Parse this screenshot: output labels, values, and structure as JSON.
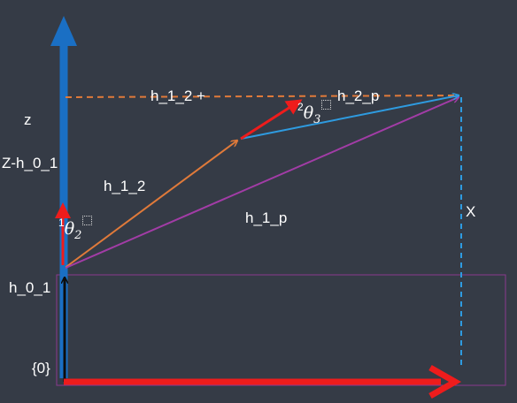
{
  "labels": {
    "z": "z",
    "z_minus_h01": "Z-h_0_1",
    "h_1_2": "h_1_2",
    "h_1_p": "h_1_p",
    "h_1_2_plus": "h_1_2 +",
    "h_2_p": "h_2_p",
    "x": "X",
    "h_0_1": "h_0_1",
    "frame_0": "{0}"
  },
  "angles": {
    "theta2": {
      "prefix": "1",
      "symbol": "θ",
      "subscript": "2"
    },
    "theta3": {
      "prefix": "2",
      "symbol": "θ",
      "subscript": "3"
    }
  },
  "colors": {
    "background": "#353b46",
    "z_axis": "#1a6fc4",
    "x_axis": "#ee1c1c",
    "link_1_2": "#e07a3a",
    "link_2_p": "#2e9be0",
    "link_1_p": "#a23ca6",
    "dashed_horizontal": "#e07a3a",
    "dashed_vertical": "#2e9be0",
    "base_box": "#8a3a8e",
    "base_link": "#0d0d0d"
  }
}
